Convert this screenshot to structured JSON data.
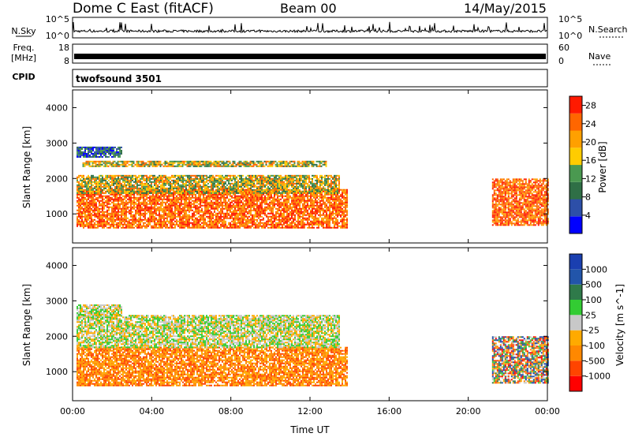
{
  "header": {
    "station": "Dome C East (fitACF)",
    "beam": "Beam 00",
    "date": "14/May/2015"
  },
  "panels": {
    "noise": {
      "left_label": "N.Sky",
      "right_label": "N.Search",
      "left_ticks": [
        "10^5",
        "10^0"
      ],
      "right_ticks": [
        "10^5",
        "10^0"
      ]
    },
    "freq": {
      "left_label_line1": "Freq.",
      "left_label_line2": "[MHz]",
      "right_label": "Nave",
      "left_ticks": [
        "18",
        "8"
      ],
      "right_ticks": [
        "60",
        "0"
      ]
    },
    "cpid": {
      "label": "CPID",
      "value": "twofsound 3501"
    }
  },
  "colors": {
    "power_scale": [
      "#0000ff",
      "#2d4fa8",
      "#2f6f46",
      "#4a9950",
      "#ffcc00",
      "#ffa000",
      "#ff6600",
      "#ff1a00"
    ],
    "velocity_scale": [
      "#ff0000",
      "#ff4400",
      "#ff8800",
      "#ffaa00",
      "#c8c8c8",
      "#33cc33",
      "#2f7a4a",
      "#2255aa",
      "#1a3fb0"
    ]
  },
  "chart_data": [
    {
      "type": "heatmap",
      "title": "",
      "xlabel": "",
      "ylabel": "Slant Range [km]",
      "x_ticks": [
        "00:00",
        "04:00",
        "08:00",
        "12:00",
        "16:00",
        "20:00",
        "00:00"
      ],
      "y_ticks": [
        "1000",
        "2000",
        "3000",
        "4000"
      ],
      "xlim_hours": [
        0,
        24
      ],
      "ylim_km": [
        180,
        4500
      ],
      "colorbar": {
        "label": "Power [dB]",
        "ticks": [
          "4",
          "8",
          "12",
          "16",
          "20",
          "24",
          "28"
        ],
        "range": [
          0,
          30
        ]
      },
      "regions": [
        {
          "t0": 0.2,
          "t1": 13.9,
          "r0": 600,
          "r1": 1700,
          "value": "high"
        },
        {
          "t0": 0.2,
          "t1": 13.5,
          "r0": 1600,
          "r1": 2100,
          "value": "mid"
        },
        {
          "t0": 0.5,
          "t1": 12.8,
          "r0": 2350,
          "r1": 2500,
          "value": "mid"
        },
        {
          "t0": 0.2,
          "t1": 2.5,
          "r0": 2600,
          "r1": 2900,
          "value": "low"
        },
        {
          "t0": 21.2,
          "t1": 24.0,
          "r0": 700,
          "r1": 2000,
          "value": "high"
        }
      ]
    },
    {
      "type": "heatmap",
      "title": "",
      "xlabel": "Time UT",
      "ylabel": "Slant Range [km]",
      "x_ticks": [
        "00:00",
        "04:00",
        "08:00",
        "12:00",
        "16:00",
        "20:00",
        "00:00"
      ],
      "y_ticks": [
        "1000",
        "2000",
        "3000",
        "4000"
      ],
      "xlim_hours": [
        0,
        24
      ],
      "ylim_km": [
        180,
        4500
      ],
      "colorbar": {
        "label": "Velocity [m s^-1]",
        "ticks": [
          "1000",
          "500",
          "100",
          "25",
          "-25",
          "-100",
          "-500",
          "-1000"
        ],
        "range": [
          -1000,
          1000
        ]
      },
      "regions": [
        {
          "t0": 0.2,
          "t1": 13.9,
          "r0": 600,
          "r1": 1700,
          "value": "negative"
        },
        {
          "t0": 0.2,
          "t1": 13.5,
          "r0": 1700,
          "r1": 2600,
          "value": "near-zero"
        },
        {
          "t0": 0.2,
          "t1": 2.5,
          "r0": 2600,
          "r1": 2900,
          "value": "near-zero"
        },
        {
          "t0": 21.2,
          "t1": 24.0,
          "r0": 700,
          "r1": 2000,
          "value": "mixed"
        }
      ]
    }
  ]
}
